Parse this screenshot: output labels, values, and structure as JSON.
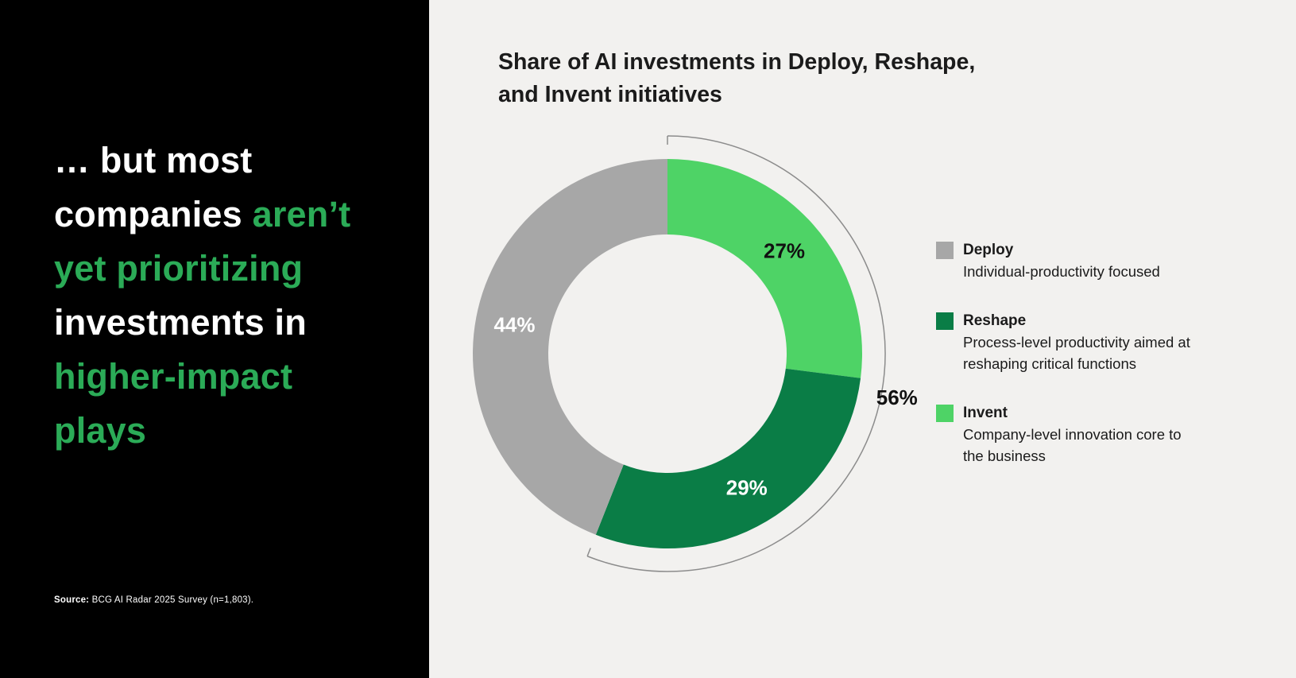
{
  "colors": {
    "headline_white": "#ffffff",
    "headline_green": "#2bab57",
    "panel_bg": "#000000",
    "canvas_bg": "#f2f1ef",
    "bracket_line": "#8c8c8c"
  },
  "left_panel": {
    "headline_segments": [
      {
        "text": "… but most\ncompanies ",
        "color": "white"
      },
      {
        "text": "aren’t\nyet prioritizing\n",
        "color": "green"
      },
      {
        "text": "investments in\n",
        "color": "white"
      },
      {
        "text": "higher-impact\nplays",
        "color": "green"
      }
    ],
    "source_label": "Source:",
    "source_text": " BCG AI Radar 2025 Survey (n=1,803)."
  },
  "chart": {
    "title_line1": "Share of AI investments in Deploy, Reshape,",
    "title_line2": "and Invent initiatives"
  },
  "chart_data": {
    "type": "pie",
    "subtype": "donut",
    "title": "Share of AI investments in Deploy, Reshape, and Invent initiatives",
    "direction": "clockwise",
    "start_angle": "12-o-clock",
    "segments": [
      {
        "name": "Invent",
        "value": 27,
        "label": "27%",
        "color": "#4ed366",
        "label_color": "#111111"
      },
      {
        "name": "Reshape",
        "value": 29,
        "label": "29%",
        "color": "#0a7d46",
        "label_color": "#ffffff"
      },
      {
        "name": "Deploy",
        "value": 44,
        "label": "44%",
        "color": "#a7a7a7",
        "label_color": "#ffffff"
      }
    ],
    "bracket": {
      "label": "56%",
      "from_pct": 0,
      "to_pct": 56,
      "covers": [
        "Invent",
        "Reshape"
      ]
    },
    "legend_position": "right",
    "legend": [
      {
        "name": "Deploy",
        "color": "#a7a7a7",
        "description": "Individual-productivity focused"
      },
      {
        "name": "Reshape",
        "color": "#0a7d46",
        "description": "Process-level productivity aimed at reshaping critical functions"
      },
      {
        "name": "Invent",
        "color": "#4ed366",
        "description": "Company-level innovation core to the business"
      }
    ]
  }
}
